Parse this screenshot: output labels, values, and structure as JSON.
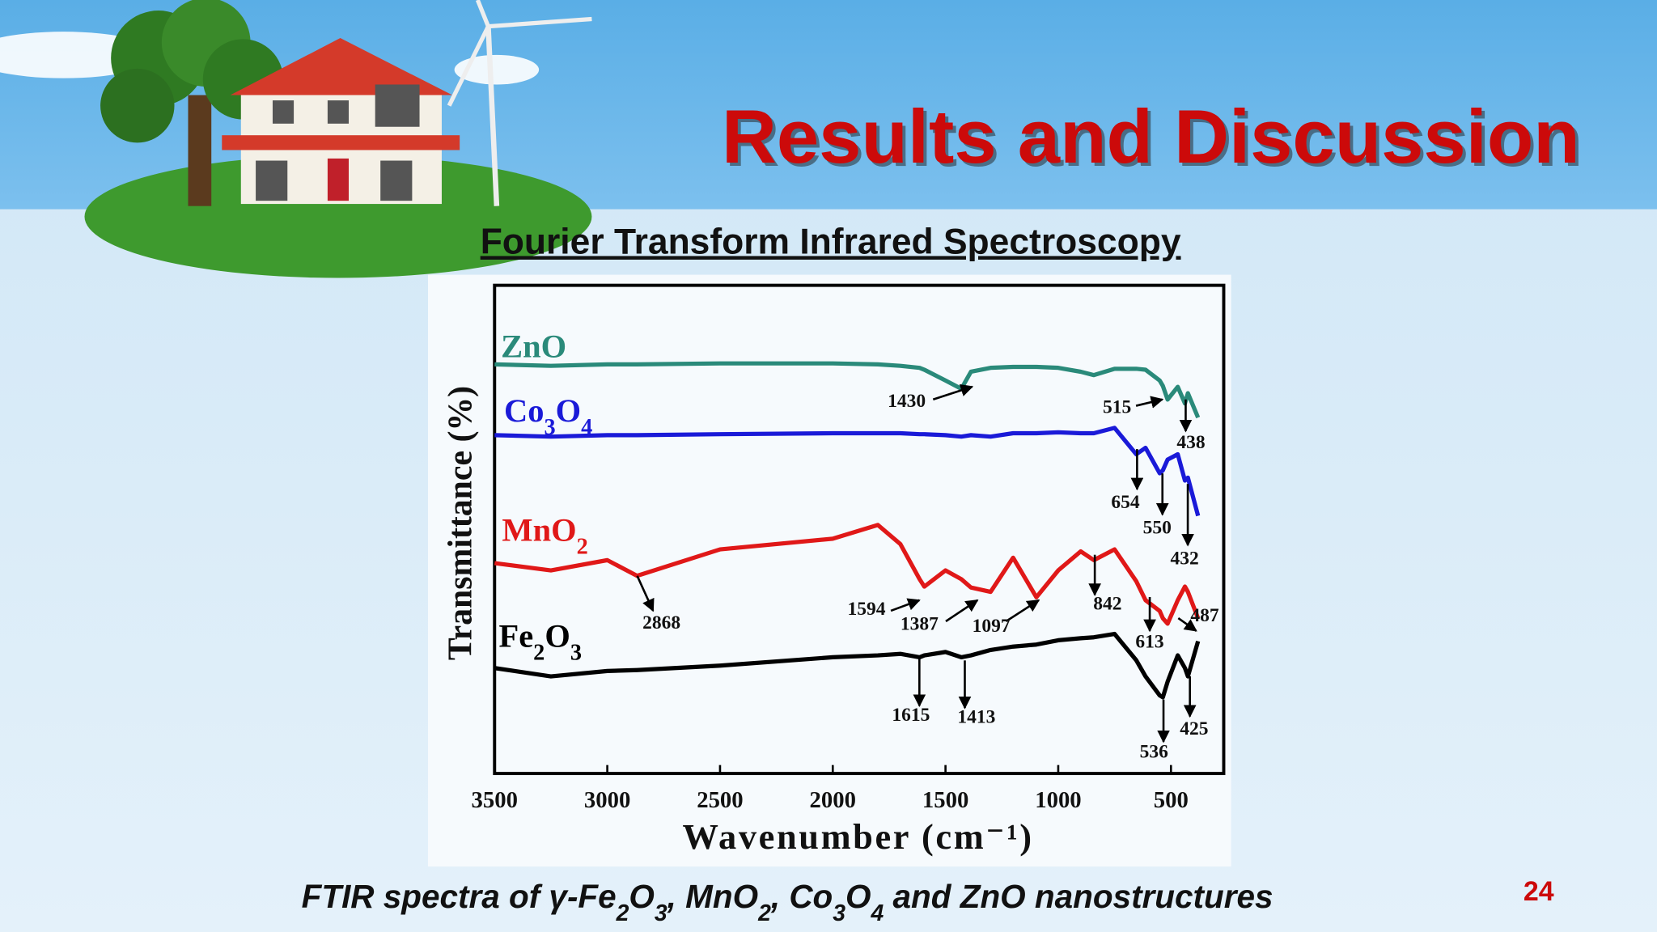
{
  "header": {
    "title": "Results and Discussion"
  },
  "subtitle": "Fourier Transform Infrared Spectroscopy",
  "chart_data": {
    "type": "line",
    "x_label": "Wavenumber (cm⁻¹)",
    "y_label": "Transmittance (%)",
    "xlim": [
      3500,
      266
    ],
    "xticks": [
      3500,
      3000,
      2500,
      2000,
      1500,
      1000,
      500
    ],
    "ylim": [
      0,
      100
    ],
    "x": [
      3500,
      3250,
      3000,
      2868,
      2500,
      2000,
      1800,
      1700,
      1615,
      1594,
      1500,
      1430,
      1387,
      1300,
      1200,
      1097,
      1000,
      900,
      842,
      750,
      654,
      613,
      550,
      536,
      515,
      470,
      438,
      425,
      380
    ],
    "series": [
      {
        "name": "ZnO",
        "color": "#2a8a7a",
        "peaks": [
          1430,
          515,
          438
        ],
        "values": [
          83.8,
          83.5,
          83.8,
          83.8,
          84.0,
          84.0,
          83.8,
          83.5,
          83.1,
          82.7,
          80.5,
          78.8,
          82.3,
          83.1,
          83.3,
          83.3,
          83.1,
          82.3,
          81.6,
          82.9,
          82.9,
          82.7,
          80.5,
          79.4,
          76.6,
          79.2,
          75.8,
          77.9,
          72.9
        ]
      },
      {
        "name": "Co3O4",
        "color": "#1a1ad8",
        "peaks": [
          654,
          550,
          432
        ],
        "values": [
          69.3,
          69.0,
          69.3,
          69.3,
          69.5,
          69.7,
          69.7,
          69.7,
          69.5,
          69.5,
          69.3,
          69.0,
          69.3,
          69.0,
          69.7,
          69.7,
          69.9,
          69.7,
          69.7,
          70.8,
          65.4,
          66.7,
          61.5,
          62.1,
          64.3,
          65.4,
          60.0,
          60.6,
          52.8
        ]
      },
      {
        "name": "MnO2",
        "color": "#e01818",
        "peaks": [
          2868,
          1594,
          1387,
          1097,
          842,
          613,
          487
        ],
        "values": [
          43.1,
          41.6,
          43.7,
          40.5,
          45.9,
          48.1,
          50.9,
          47.0,
          39.8,
          38.3,
          41.6,
          39.8,
          38.1,
          37.2,
          44.2,
          36.1,
          41.6,
          45.5,
          43.7,
          45.9,
          39.4,
          35.5,
          33.3,
          31.8,
          30.7,
          35.5,
          38.3,
          37.2,
          31.8
        ]
      },
      {
        "name": "Fe2O3",
        "color": "#000000",
        "peaks": [
          1615,
          1413,
          536,
          425
        ],
        "values": [
          21.6,
          19.9,
          21.0,
          21.2,
          22.1,
          23.8,
          24.2,
          24.5,
          23.8,
          24.2,
          24.9,
          23.8,
          24.2,
          25.3,
          26.0,
          26.4,
          27.3,
          27.7,
          27.9,
          28.6,
          23.2,
          19.9,
          16.0,
          15.6,
          18.8,
          24.2,
          21.6,
          19.9,
          27.1
        ]
      }
    ]
  },
  "caption": "FTIR spectra of γ-Fe2O3, MnO2, Co3O4 and ZnO nanostructures",
  "page_number": "24"
}
